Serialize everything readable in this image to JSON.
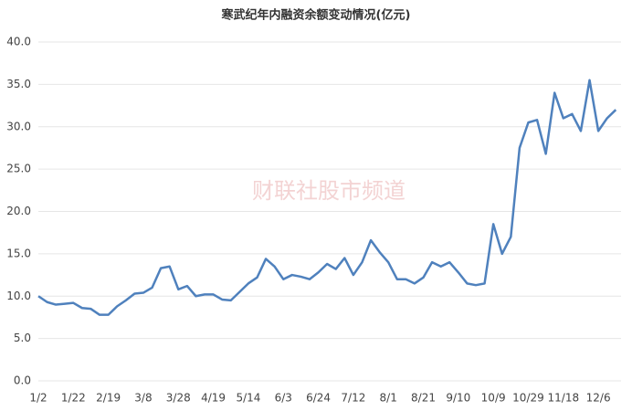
{
  "chart_data": {
    "type": "line",
    "title": "寒武纪年内融资余额变动情况(亿元)",
    "watermark": "财联社股市频道",
    "categories": [
      "1/2",
      null,
      null,
      null,
      "1/22",
      null,
      null,
      null,
      "2/19",
      null,
      null,
      null,
      "3/8",
      null,
      null,
      null,
      "3/28",
      null,
      null,
      null,
      "4/19",
      null,
      null,
      null,
      "5/14",
      null,
      null,
      null,
      "6/3",
      null,
      null,
      null,
      "6/24",
      null,
      null,
      null,
      "7/12",
      null,
      null,
      null,
      "8/1",
      null,
      null,
      null,
      "8/21",
      null,
      null,
      null,
      "9/10",
      null,
      null,
      null,
      "10/9",
      null,
      null,
      null,
      "10/29",
      null,
      null,
      null,
      "11/18",
      null,
      null,
      null,
      "12/6",
      null,
      null
    ],
    "series": [
      {
        "name": "融资余额",
        "color": "#4f81bd",
        "values": [
          10.0,
          9.3,
          9.0,
          9.1,
          9.2,
          8.6,
          8.5,
          7.8,
          7.8,
          8.8,
          9.5,
          10.3,
          10.4,
          11.0,
          13.3,
          13.5,
          10.8,
          11.2,
          10.0,
          10.2,
          10.2,
          9.6,
          9.5,
          10.5,
          11.5,
          12.2,
          14.4,
          13.5,
          12.0,
          12.5,
          12.3,
          12.0,
          12.8,
          13.8,
          13.2,
          14.5,
          12.5,
          14.0,
          16.6,
          15.2,
          14.0,
          12.0,
          12.0,
          11.5,
          12.2,
          14.0,
          13.5,
          14.0,
          12.8,
          11.5,
          11.3,
          11.5,
          18.5,
          15.0,
          17.0,
          27.5,
          30.5,
          30.8,
          26.8,
          34.0,
          31.0,
          31.5,
          29.5,
          35.5,
          29.5,
          31.0,
          32.0
        ]
      }
    ],
    "ylim": [
      0,
      40
    ],
    "yticks": [
      {
        "value": 0,
        "label": "0.0"
      },
      {
        "value": 5,
        "label": "5.0"
      },
      {
        "value": 10,
        "label": "10.0"
      },
      {
        "value": 15,
        "label": "15.0"
      },
      {
        "value": 20,
        "label": "20.0"
      },
      {
        "value": 25,
        "label": "25.0"
      },
      {
        "value": 30,
        "label": "30.0"
      },
      {
        "value": 35,
        "label": "35.0"
      },
      {
        "value": 40,
        "label": "40.0"
      }
    ],
    "grid": true
  }
}
